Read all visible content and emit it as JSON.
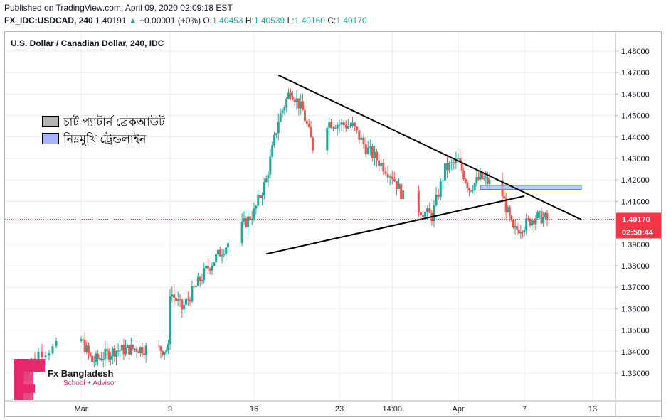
{
  "header": {
    "published": "Published on TradingView.com, April 09, 2020 02:09:18 EST",
    "symbol": "FX_IDC:USDCAD, 240",
    "last": "1.40191",
    "change_arrow": "▲",
    "change": "+0.00001 (+0%)",
    "o_label": "O:",
    "o_value": "1.40453",
    "h_label": "H:",
    "h_value": "1.40539",
    "l_label": "L:",
    "l_value": "1.40160",
    "c_label": "C:",
    "c_value": "1.40170"
  },
  "chart_title": "U.S. Dollar / Canadian Dollar, 240, IDC",
  "legend": [
    {
      "label": "চার্ট প্যাটার্ন ব্রেকআউট",
      "color": "#b2b2b2"
    },
    {
      "label": "নিম্নমুখি ট্রেন্ডলাইন",
      "color": "#a9b4ff"
    }
  ],
  "price_tag": {
    "value": "1.40170",
    "countdown": "02:50:44",
    "color": "#f23645"
  },
  "logo": {
    "name": "Fx Bangladesh",
    "tagline": "School + Advisor",
    "icon": "fx-bangladesh-logo-icon",
    "color": "#e6296d"
  },
  "colors": {
    "up": "#26a69a",
    "down": "#ef5350",
    "trendline": "#000000",
    "zone_fill": "#a9b4ff",
    "current_price_line": "#f23645",
    "grid": "#e9ecf2",
    "axis_text": "#131722"
  },
  "chart_data": {
    "type": "candlestick",
    "title": "U.S. Dollar / Canadian Dollar, 240, IDC",
    "x_ticks": [
      "Mar",
      "9",
      "16",
      "23",
      "14:00",
      "Apr",
      "7",
      "13"
    ],
    "y_ticks": [
      "1.48000",
      "1.47000",
      "1.46000",
      "1.45000",
      "1.44000",
      "1.43000",
      "1.42000",
      "1.41000",
      "1.40000",
      "1.39000",
      "1.38000",
      "1.37000",
      "1.36000",
      "1.35000",
      "1.34000",
      "1.33000"
    ],
    "ylim": [
      1.322,
      1.4885
    ],
    "last_price": 1.4017,
    "waypoints": [
      [
        "2020-02-27",
        1.3285
      ],
      [
        "2020-02-28",
        1.3395
      ],
      [
        "2020-03-01",
        1.3455
      ],
      [
        "2020-03-02",
        1.3355
      ],
      [
        "2020-03-04",
        1.3405
      ],
      [
        "2020-03-06",
        1.3415
      ],
      [
        "2020-03-09",
        1.341
      ],
      [
        "2020-03-09",
        1.368
      ],
      [
        "2020-03-10",
        1.36
      ],
      [
        "2020-03-12",
        1.378
      ],
      [
        "2020-03-13",
        1.385
      ],
      [
        "2020-03-16",
        1.405
      ],
      [
        "2020-03-17",
        1.42
      ],
      [
        "2020-03-18",
        1.448
      ],
      [
        "2020-03-19",
        1.462
      ],
      [
        "2020-03-20",
        1.452
      ],
      [
        "2020-03-21",
        1.432
      ],
      [
        "2020-03-22",
        1.447
      ],
      [
        "2020-03-24",
        1.445
      ],
      [
        "2020-03-25",
        1.435
      ],
      [
        "2020-03-27",
        1.422
      ],
      [
        "2020-03-28",
        1.41
      ],
      [
        "2020-03-30",
        1.403
      ],
      [
        "2020-03-31",
        1.425
      ],
      [
        "2020-04-01",
        1.429
      ],
      [
        "2020-04-02",
        1.416
      ],
      [
        "2020-04-03",
        1.421
      ],
      [
        "2020-04-04",
        1.418
      ],
      [
        "2020-04-05",
        1.413
      ],
      [
        "2020-04-06",
        1.396
      ],
      [
        "2020-04-07",
        1.399
      ],
      [
        "2020-04-08",
        1.403
      ],
      [
        "2020-04-09",
        1.4017
      ]
    ],
    "annotations": {
      "upper_trendline": [
        [
          "2020-03-18",
          1.4688
        ],
        [
          "2020-04-12",
          1.4015
        ]
      ],
      "lower_trendline": [
        [
          "2020-03-17",
          1.3855
        ],
        [
          "2020-04-07",
          1.4125
        ]
      ],
      "zone": {
        "x_start": "2020-04-03",
        "x_end": "2020-04-12",
        "y_low": 1.4155,
        "y_high": 1.4175
      }
    }
  }
}
